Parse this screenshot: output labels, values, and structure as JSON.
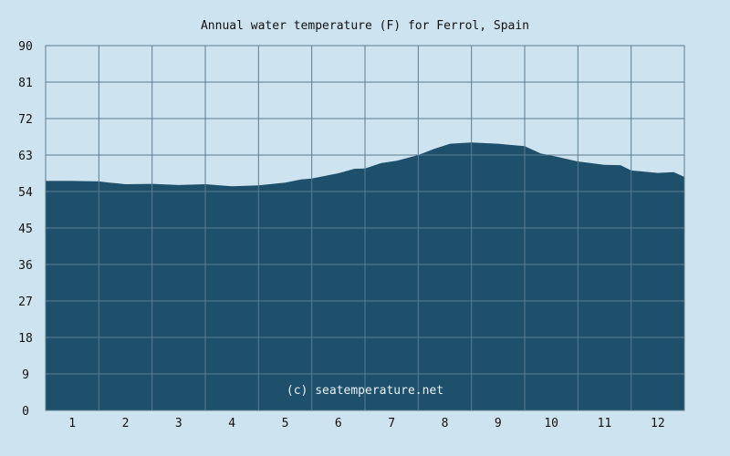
{
  "chart_data": {
    "type": "area",
    "title": "Annual water temperature (F) for Ferrol, Spain",
    "xlabel": "",
    "ylabel": "",
    "watermark": "(c) seatemperature.net",
    "x_categories": [
      "1",
      "2",
      "3",
      "4",
      "5",
      "6",
      "7",
      "8",
      "9",
      "10",
      "11",
      "12"
    ],
    "y_ticks": [
      0,
      9,
      18,
      27,
      36,
      45,
      54,
      63,
      72,
      81,
      90
    ],
    "ylim": [
      0,
      90
    ],
    "xlim": [
      0,
      12
    ],
    "grid": true,
    "legend": "none",
    "colors": {
      "background": "#cde3ef",
      "plot_background": "#cde3ef",
      "fill": "#1e4f6b",
      "grid": "#5a7d92",
      "watermark": "#e8f1f6"
    },
    "series": [
      {
        "points": [
          [
            0.0,
            56.6
          ],
          [
            0.5,
            56.6
          ],
          [
            1.0,
            56.5
          ],
          [
            1.2,
            56.2
          ],
          [
            1.5,
            55.8
          ],
          [
            2.0,
            55.9
          ],
          [
            2.5,
            55.6
          ],
          [
            3.0,
            55.8
          ],
          [
            3.5,
            55.3
          ],
          [
            4.0,
            55.5
          ],
          [
            4.5,
            56.2
          ],
          [
            4.8,
            57.0
          ],
          [
            5.0,
            57.2
          ],
          [
            5.3,
            58.0
          ],
          [
            5.5,
            58.5
          ],
          [
            5.8,
            59.6
          ],
          [
            6.0,
            59.7
          ],
          [
            6.3,
            61.0
          ],
          [
            6.6,
            61.6
          ],
          [
            7.0,
            63.0
          ],
          [
            7.3,
            64.5
          ],
          [
            7.6,
            65.8
          ],
          [
            8.0,
            66.1
          ],
          [
            8.5,
            65.8
          ],
          [
            8.8,
            65.4
          ],
          [
            9.0,
            65.2
          ],
          [
            9.3,
            63.4
          ],
          [
            9.6,
            62.6
          ],
          [
            10.0,
            61.4
          ],
          [
            10.5,
            60.6
          ],
          [
            10.8,
            60.5
          ],
          [
            11.0,
            59.2
          ],
          [
            11.5,
            58.6
          ],
          [
            11.8,
            58.8
          ],
          [
            12.0,
            57.6
          ]
        ]
      }
    ]
  }
}
